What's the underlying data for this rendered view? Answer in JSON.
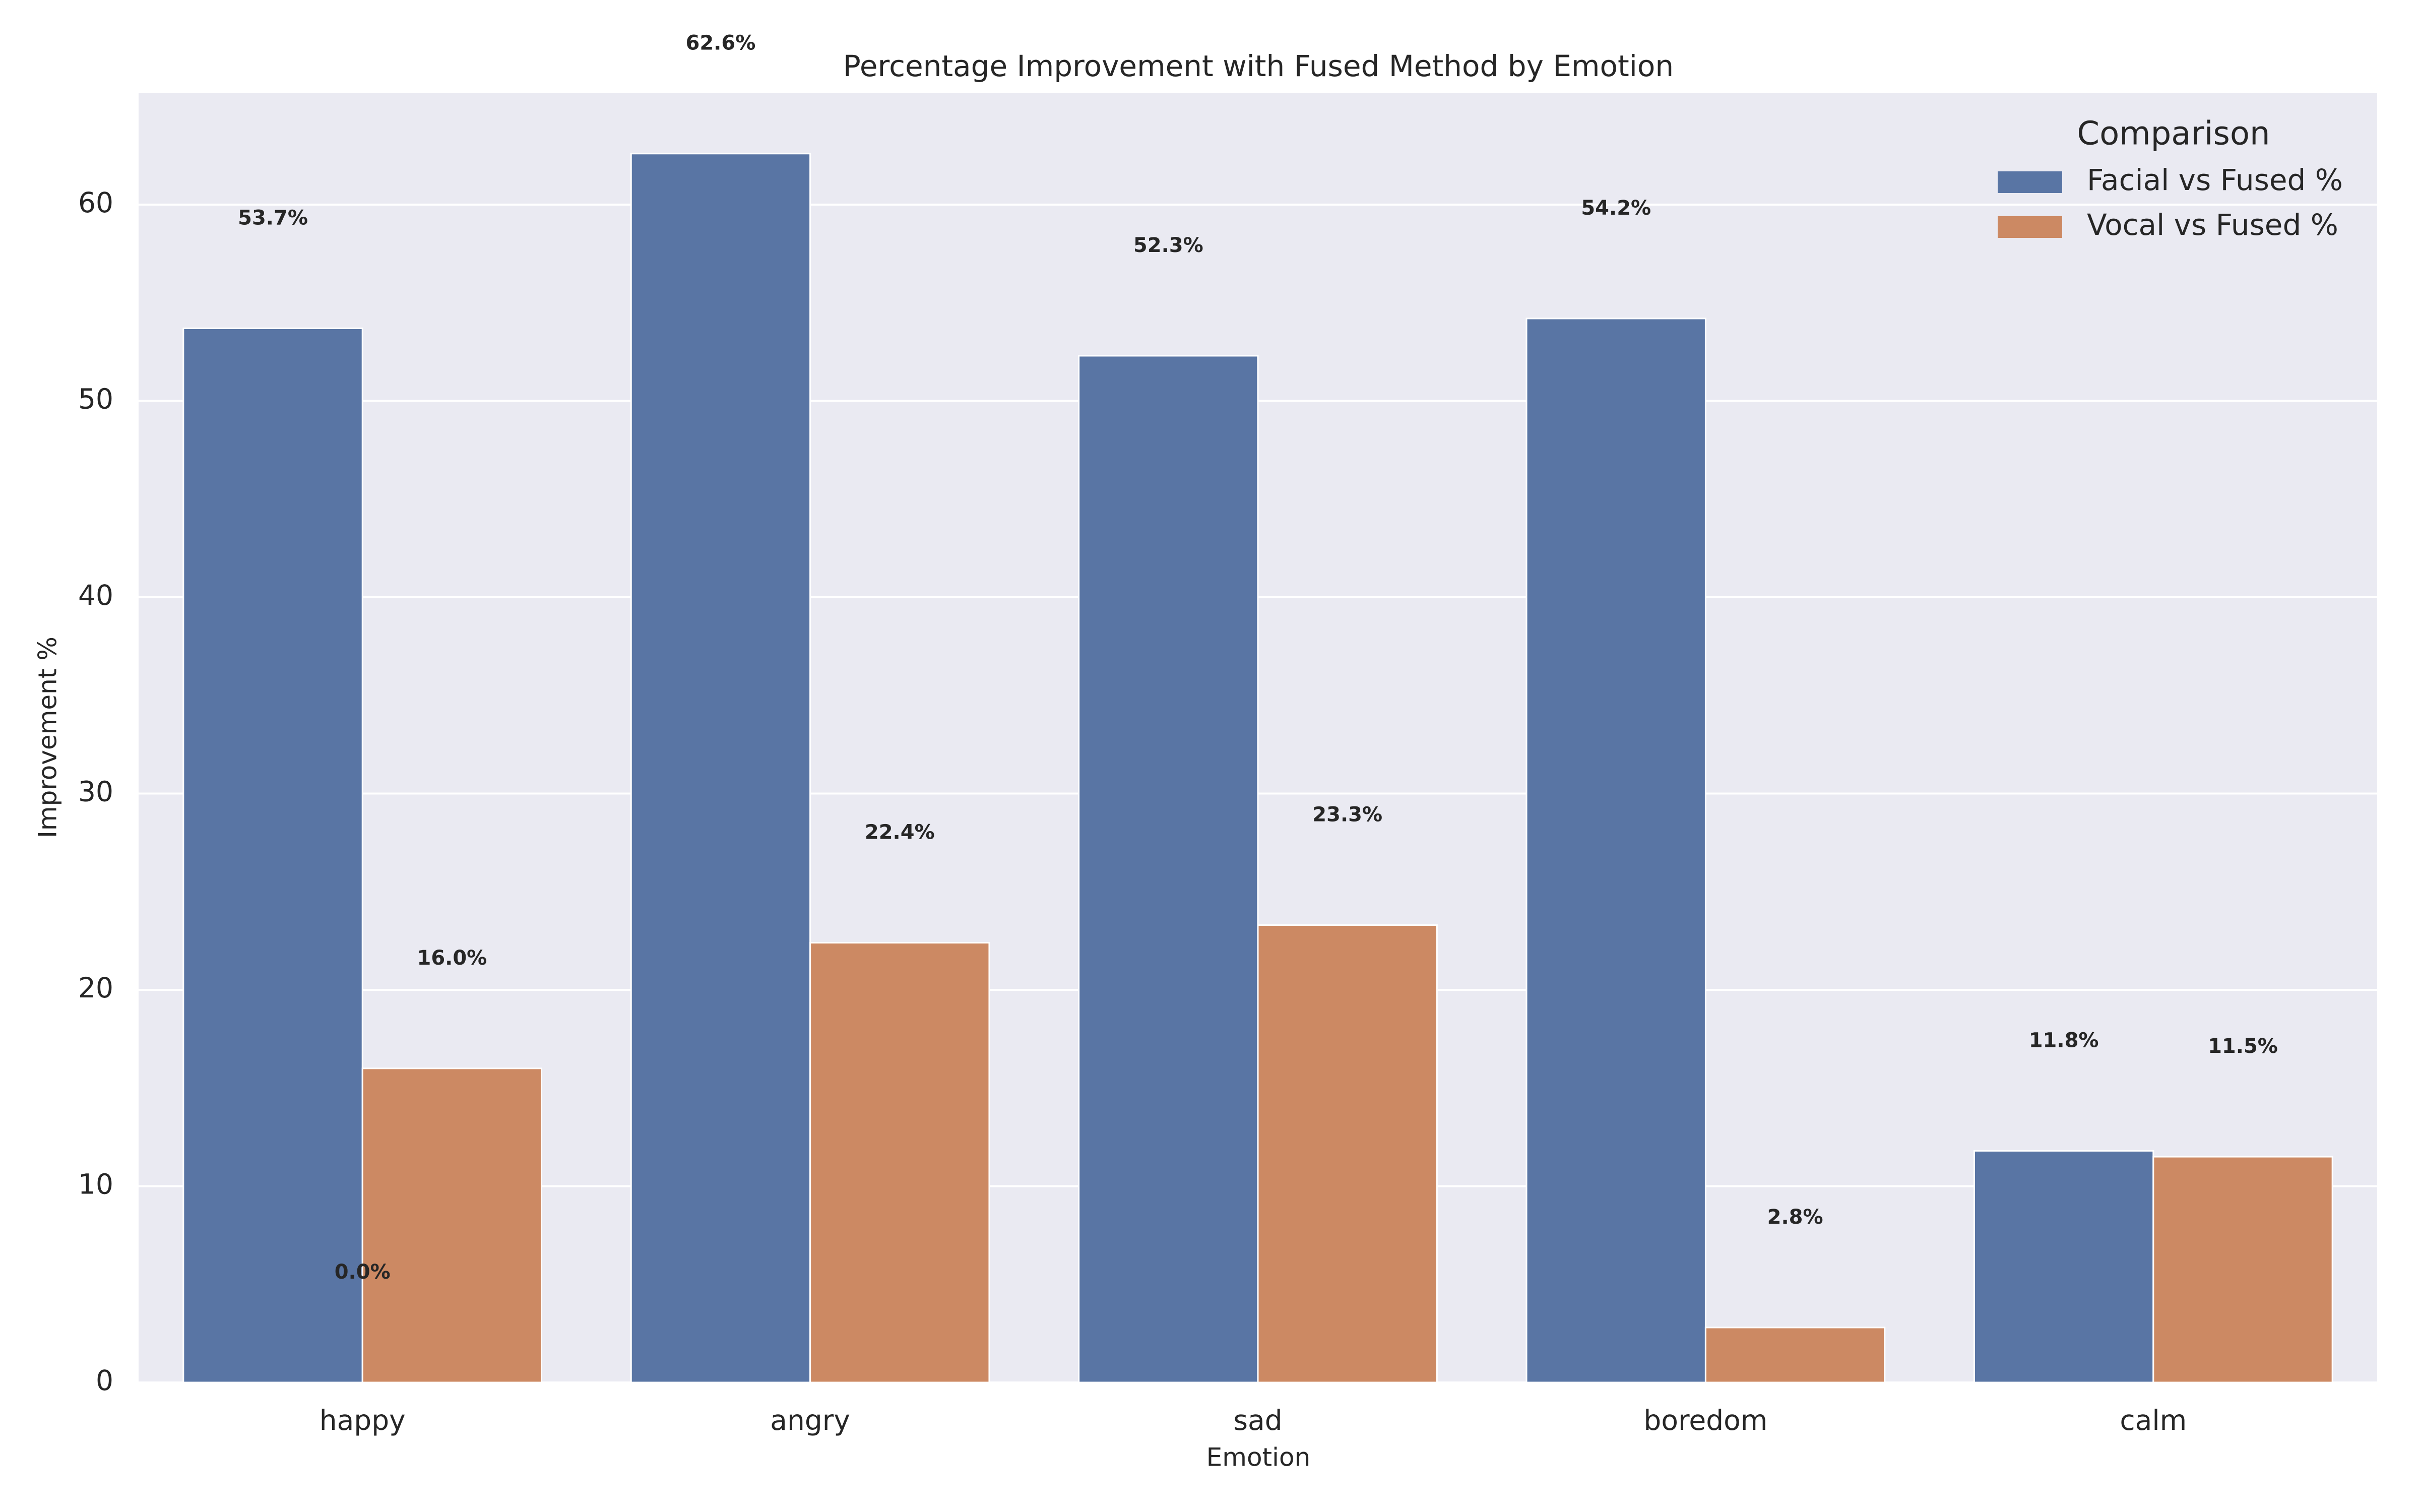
{
  "chart_data": {
    "type": "bar",
    "title": "Percentage Improvement with Fused Method by Emotion",
    "x_label": "Emotion",
    "y_label": "Improvement %",
    "categories": [
      "happy",
      "angry",
      "sad",
      "boredom",
      "calm"
    ],
    "series": [
      {
        "name": "Facial vs Fused %",
        "color": "#5975a4",
        "values": [
          53.7,
          62.6,
          52.3,
          54.2,
          11.8
        ],
        "value_labels": [
          "53.7%",
          "62.6%",
          "52.3%",
          "54.2%",
          "11.8%"
        ]
      },
      {
        "name": "Vocal vs Fused %",
        "color": "#cc8963",
        "values": [
          16.0,
          22.4,
          23.3,
          2.8,
          11.5
        ],
        "value_labels": [
          "16.0%",
          "22.4%",
          "23.3%",
          "2.8%",
          "11.5%"
        ]
      }
    ],
    "extra_labels": [
      {
        "value": 0,
        "label": "0.0%"
      }
    ],
    "ylim": [
      0,
      65.7
    ],
    "yticks": [
      0,
      10,
      20,
      30,
      40,
      50,
      60
    ],
    "grid": true,
    "legend": "upper right",
    "legend_title": "Comparison"
  }
}
